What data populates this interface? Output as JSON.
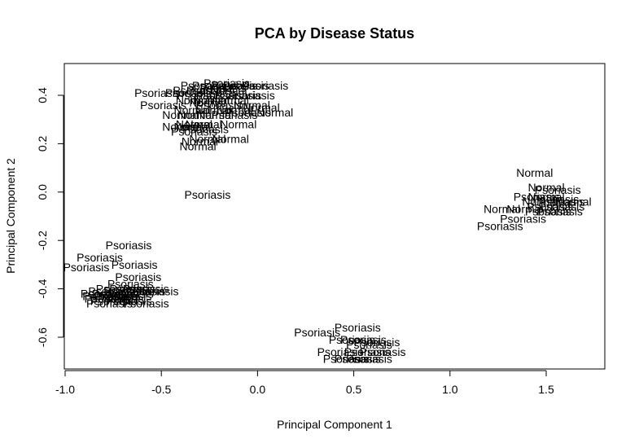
{
  "chart_data": {
    "type": "scatter",
    "title": "PCA by Disease Status",
    "xlabel": "Principal Component 1",
    "ylabel": "Principal Component 2",
    "xlim": [
      -1.0,
      1.8
    ],
    "ylim": [
      -0.72,
      0.53
    ],
    "xticks": [
      -1.0,
      -0.5,
      0.0,
      0.5,
      1.0,
      1.5
    ],
    "yticks": [
      -0.6,
      -0.4,
      -0.2,
      0.0,
      0.2,
      0.4
    ],
    "grid": false,
    "legend": "none",
    "series": [
      {
        "values": [
          {
            "x": -0.16,
            "y": 0.45,
            "label": "Psoriasis"
          },
          {
            "x": -0.28,
            "y": 0.44,
            "label": "Psoriasis"
          },
          {
            "x": -0.22,
            "y": 0.44,
            "label": "Psoriasis"
          },
          {
            "x": -0.12,
            "y": 0.44,
            "label": "Psoriasis"
          },
          {
            "x": -0.06,
            "y": 0.44,
            "label": "Psoriasis"
          },
          {
            "x": 0.04,
            "y": 0.44,
            "label": "Psoriasis"
          },
          {
            "x": -0.18,
            "y": 0.43,
            "label": "Psoriasis"
          },
          {
            "x": -0.32,
            "y": 0.42,
            "label": "Psoriasis"
          },
          {
            "x": -0.25,
            "y": 0.42,
            "label": "Psoriasis"
          },
          {
            "x": -0.15,
            "y": 0.42,
            "label": "Normal"
          },
          {
            "x": -0.52,
            "y": 0.41,
            "label": "Psoriasis"
          },
          {
            "x": -0.36,
            "y": 0.41,
            "label": "Psoriasis"
          },
          {
            "x": -0.3,
            "y": 0.4,
            "label": "Psoriasis"
          },
          {
            "x": -0.2,
            "y": 0.4,
            "label": "Psoriasis"
          },
          {
            "x": -0.1,
            "y": 0.4,
            "label": "Psoriasis"
          },
          {
            "x": -0.03,
            "y": 0.4,
            "label": "Psoriasis"
          },
          {
            "x": -0.33,
            "y": 0.38,
            "label": "Normal"
          },
          {
            "x": -0.24,
            "y": 0.38,
            "label": "Normal"
          },
          {
            "x": -0.14,
            "y": 0.38,
            "label": "Normal"
          },
          {
            "x": -0.26,
            "y": 0.37,
            "label": "Normal"
          },
          {
            "x": -0.49,
            "y": 0.36,
            "label": "Psoriasis"
          },
          {
            "x": -0.2,
            "y": 0.36,
            "label": "Psoriasis"
          },
          {
            "x": -0.03,
            "y": 0.36,
            "label": "Normal"
          },
          {
            "x": 0.02,
            "y": 0.35,
            "label": "Normal"
          },
          {
            "x": -0.34,
            "y": 0.34,
            "label": "Normal"
          },
          {
            "x": -0.23,
            "y": 0.34,
            "label": "Normal"
          },
          {
            "x": -0.12,
            "y": 0.34,
            "label": "Normal"
          },
          {
            "x": -0.05,
            "y": 0.33,
            "label": "Psoriasis"
          },
          {
            "x": 0.09,
            "y": 0.33,
            "label": "Normal"
          },
          {
            "x": -0.4,
            "y": 0.32,
            "label": "Normal"
          },
          {
            "x": -0.32,
            "y": 0.32,
            "label": "Normal"
          },
          {
            "x": -0.22,
            "y": 0.32,
            "label": "Normal"
          },
          {
            "x": -0.12,
            "y": 0.32,
            "label": "Psoriasis"
          },
          {
            "x": -0.33,
            "y": 0.28,
            "label": "Normal"
          },
          {
            "x": -0.28,
            "y": 0.28,
            "label": "Normal"
          },
          {
            "x": -0.1,
            "y": 0.28,
            "label": "Normal"
          },
          {
            "x": -0.4,
            "y": 0.27,
            "label": "Normal"
          },
          {
            "x": -0.34,
            "y": 0.27,
            "label": "Normal"
          },
          {
            "x": -0.27,
            "y": 0.26,
            "label": "Psoriasis"
          },
          {
            "x": -0.33,
            "y": 0.25,
            "label": "Psoriasis"
          },
          {
            "x": -0.26,
            "y": 0.22,
            "label": "Normal"
          },
          {
            "x": -0.14,
            "y": 0.22,
            "label": "Normal"
          },
          {
            "x": -0.3,
            "y": 0.21,
            "label": "Normal"
          },
          {
            "x": -0.31,
            "y": 0.19,
            "label": "Normal"
          },
          {
            "x": -0.26,
            "y": -0.01,
            "label": "Psoriasis"
          },
          {
            "x": 1.44,
            "y": 0.08,
            "label": "Normal"
          },
          {
            "x": 1.5,
            "y": 0.02,
            "label": "Normal"
          },
          {
            "x": 1.56,
            "y": 0.01,
            "label": "Psoriasis"
          },
          {
            "x": 1.45,
            "y": -0.02,
            "label": "Psoriasis"
          },
          {
            "x": 1.5,
            "y": -0.02,
            "label": "Normal"
          },
          {
            "x": 1.55,
            "y": -0.03,
            "label": "Psoriasis"
          },
          {
            "x": 1.47,
            "y": -0.04,
            "label": "Normal"
          },
          {
            "x": 1.58,
            "y": -0.04,
            "label": "Psoriasis"
          },
          {
            "x": 1.64,
            "y": -0.04,
            "label": "Normal"
          },
          {
            "x": 1.52,
            "y": -0.06,
            "label": "Psoriasis"
          },
          {
            "x": 1.58,
            "y": -0.06,
            "label": "Psoriasis"
          },
          {
            "x": 1.27,
            "y": -0.07,
            "label": "Normal"
          },
          {
            "x": 1.39,
            "y": -0.07,
            "label": "Normal"
          },
          {
            "x": 1.51,
            "y": -0.08,
            "label": "Psoriasis"
          },
          {
            "x": 1.57,
            "y": -0.08,
            "label": "Psoriasis"
          },
          {
            "x": 1.38,
            "y": -0.11,
            "label": "Psoriasis"
          },
          {
            "x": 1.26,
            "y": -0.14,
            "label": "Psoriasis"
          },
          {
            "x": -0.67,
            "y": -0.22,
            "label": "Psoriasis"
          },
          {
            "x": -0.82,
            "y": -0.27,
            "label": "Psoriasis"
          },
          {
            "x": -0.89,
            "y": -0.31,
            "label": "Psoriasis"
          },
          {
            "x": -0.64,
            "y": -0.3,
            "label": "Psoriasis"
          },
          {
            "x": -0.62,
            "y": -0.35,
            "label": "Psoriasis"
          },
          {
            "x": -0.66,
            "y": -0.38,
            "label": "Psoriasis"
          },
          {
            "x": -0.72,
            "y": -0.4,
            "label": "Psoriasis"
          },
          {
            "x": -0.65,
            "y": -0.4,
            "label": "Psoriasis"
          },
          {
            "x": -0.58,
            "y": -0.4,
            "label": "Psoriasis"
          },
          {
            "x": -0.76,
            "y": -0.41,
            "label": "Psoriasis"
          },
          {
            "x": -0.68,
            "y": -0.41,
            "label": "Psoriasis"
          },
          {
            "x": -0.6,
            "y": -0.41,
            "label": "Psoriasis"
          },
          {
            "x": -0.53,
            "y": -0.41,
            "label": "Psoriasis"
          },
          {
            "x": -0.8,
            "y": -0.42,
            "label": "Psoriasis"
          },
          {
            "x": -0.74,
            "y": -0.42,
            "label": "Psoriasis"
          },
          {
            "x": -0.66,
            "y": -0.42,
            "label": "Psoriasis"
          },
          {
            "x": -0.79,
            "y": -0.43,
            "label": "Psoriasis"
          },
          {
            "x": -0.73,
            "y": -0.43,
            "label": "Psoriasis"
          },
          {
            "x": -0.67,
            "y": -0.43,
            "label": "Psoriasis"
          },
          {
            "x": -0.78,
            "y": -0.44,
            "label": "Psoriasis"
          },
          {
            "x": -0.71,
            "y": -0.44,
            "label": "Psoriasis"
          },
          {
            "x": -0.75,
            "y": -0.45,
            "label": "Psoriasis"
          },
          {
            "x": -0.67,
            "y": -0.45,
            "label": "Psoriasis"
          },
          {
            "x": -0.77,
            "y": -0.46,
            "label": "Psoriasis"
          },
          {
            "x": -0.58,
            "y": -0.46,
            "label": "Psoriasis"
          },
          {
            "x": 0.31,
            "y": -0.58,
            "label": "Psoriasis"
          },
          {
            "x": 0.52,
            "y": -0.56,
            "label": "Psoriasis"
          },
          {
            "x": 0.49,
            "y": -0.61,
            "label": "Psoriasis"
          },
          {
            "x": 0.55,
            "y": -0.61,
            "label": "Psoriasis"
          },
          {
            "x": 0.62,
            "y": -0.62,
            "label": "Psoriasis"
          },
          {
            "x": 0.58,
            "y": -0.63,
            "label": "Psoriasis"
          },
          {
            "x": 0.43,
            "y": -0.66,
            "label": "Psoriasis"
          },
          {
            "x": 0.57,
            "y": -0.66,
            "label": "Psoriasis"
          },
          {
            "x": 0.65,
            "y": -0.66,
            "label": "Psoriasis"
          },
          {
            "x": 0.46,
            "y": -0.69,
            "label": "Psoriasis"
          },
          {
            "x": 0.52,
            "y": -0.69,
            "label": "Psoriasis"
          },
          {
            "x": 0.58,
            "y": -0.69,
            "label": "Psoriasis"
          }
        ]
      }
    ]
  }
}
